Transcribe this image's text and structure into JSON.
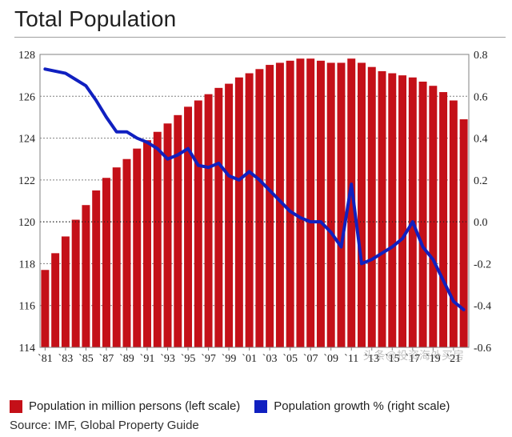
{
  "title": "Total Population",
  "source": "Source: IMF, Global Property Guide",
  "watermark": "头条@投资海外买房",
  "legend": {
    "bars": {
      "label": "Population in million persons (left scale)",
      "color": "#c41018"
    },
    "line": {
      "label": "Population growth % (right scale)",
      "color": "#1020c0"
    }
  },
  "chart": {
    "type": "bar+line",
    "background_color": "#ffffff",
    "plot_border_color": "#808080",
    "grid_color": "#808080",
    "grid_dash": "2,2",
    "tick_fontsize": 14,
    "tick_color": "#202020",
    "years": [
      1981,
      1982,
      1983,
      1984,
      1985,
      1986,
      1987,
      1988,
      1989,
      1990,
      1991,
      1992,
      1993,
      1994,
      1995,
      1996,
      1997,
      1998,
      1999,
      2000,
      2001,
      2002,
      2003,
      2004,
      2005,
      2006,
      2007,
      2008,
      2009,
      2010,
      2011,
      2012,
      2013,
      2014,
      2015,
      2016,
      2017,
      2018,
      2019,
      2020,
      2021,
      2022
    ],
    "x_tick_years": [
      1981,
      1983,
      1985,
      1987,
      1989,
      1991,
      1993,
      1995,
      1997,
      1999,
      2001,
      2003,
      2005,
      2007,
      2009,
      2011,
      2013,
      2015,
      2017,
      2019,
      2021
    ],
    "x_tick_prefix": "`",
    "left_axis": {
      "ymin": 114,
      "ymax": 128,
      "ticks": [
        114,
        116,
        118,
        120,
        122,
        124,
        126,
        128
      ]
    },
    "right_axis": {
      "ymin": -0.6,
      "ymax": 0.8,
      "ticks": [
        -0.6,
        -0.4,
        -0.2,
        0.0,
        0.2,
        0.4,
        0.6,
        0.8
      ],
      "decimals": 1
    },
    "zero_line": {
      "right_value": 0.0,
      "color": "#202020",
      "dash": "1,3"
    },
    "bars": {
      "color": "#c41018",
      "width_frac": 0.78,
      "values": [
        117.7,
        118.5,
        119.3,
        120.1,
        120.8,
        121.5,
        122.1,
        122.6,
        123.0,
        123.5,
        123.9,
        124.3,
        124.7,
        125.1,
        125.5,
        125.8,
        126.1,
        126.4,
        126.6,
        126.9,
        127.1,
        127.3,
        127.5,
        127.6,
        127.7,
        127.8,
        127.8,
        127.7,
        127.6,
        127.6,
        127.8,
        127.6,
        127.4,
        127.2,
        127.1,
        127.0,
        126.9,
        126.7,
        126.5,
        126.2,
        125.8,
        124.9
      ]
    },
    "line": {
      "color": "#1020c0",
      "width": 4,
      "values": [
        0.73,
        0.72,
        0.71,
        0.68,
        0.65,
        0.58,
        0.5,
        0.43,
        0.43,
        0.4,
        0.38,
        0.35,
        0.3,
        0.32,
        0.35,
        0.27,
        0.26,
        0.28,
        0.22,
        0.2,
        0.24,
        0.2,
        0.15,
        0.1,
        0.05,
        0.02,
        0.0,
        0.0,
        -0.05,
        -0.12,
        0.18,
        -0.2,
        -0.18,
        -0.15,
        -0.12,
        -0.08,
        0.0,
        -0.12,
        -0.18,
        -0.28,
        -0.38,
        -0.42
      ]
    }
  }
}
